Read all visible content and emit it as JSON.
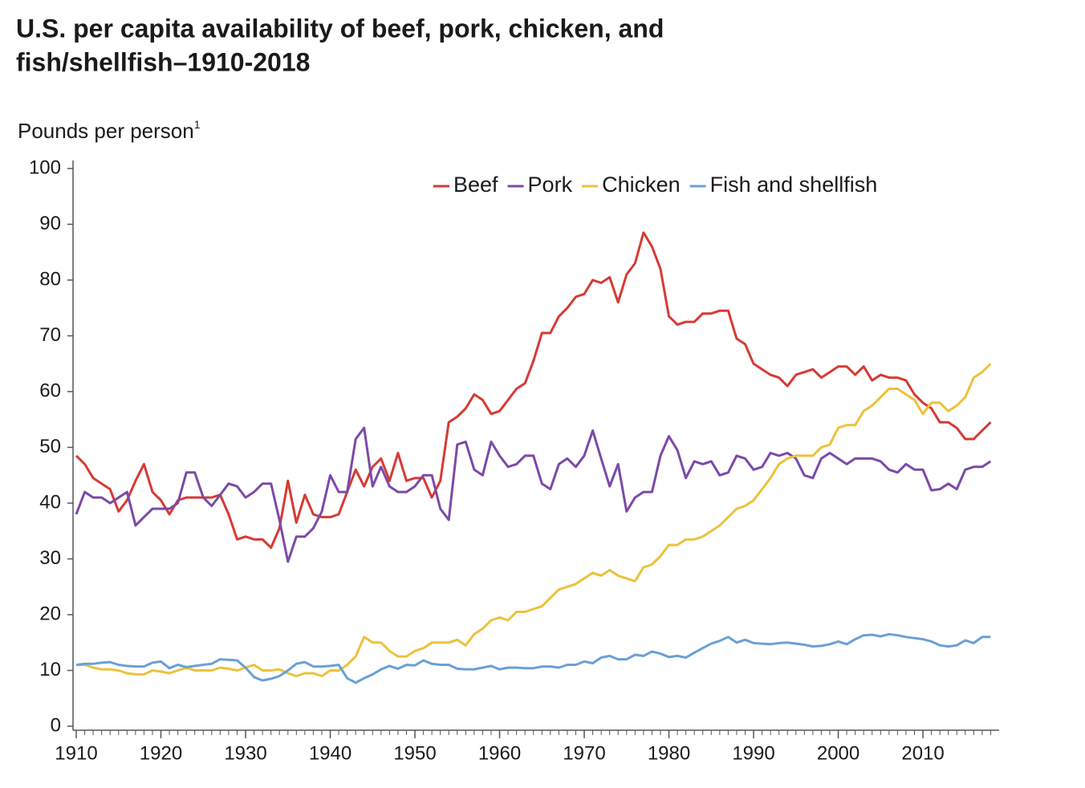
{
  "chart_data": {
    "type": "line",
    "title_lines": [
      "U.S. per capita availability of beef, pork, chicken, and",
      "fish/shellfish–1910-2018"
    ],
    "y_label": "Pounds per person",
    "y_label_note": "1",
    "x": [
      1910,
      1911,
      1912,
      1913,
      1914,
      1915,
      1916,
      1917,
      1918,
      1919,
      1920,
      1921,
      1922,
      1923,
      1924,
      1925,
      1926,
      1927,
      1928,
      1929,
      1930,
      1931,
      1932,
      1933,
      1934,
      1935,
      1936,
      1937,
      1938,
      1939,
      1940,
      1941,
      1942,
      1943,
      1944,
      1945,
      1946,
      1947,
      1948,
      1949,
      1950,
      1951,
      1952,
      1953,
      1954,
      1955,
      1956,
      1957,
      1958,
      1959,
      1960,
      1961,
      1962,
      1963,
      1964,
      1965,
      1966,
      1967,
      1968,
      1969,
      1970,
      1971,
      1972,
      1973,
      1974,
      1975,
      1976,
      1977,
      1978,
      1979,
      1980,
      1981,
      1982,
      1983,
      1984,
      1985,
      1986,
      1987,
      1988,
      1989,
      1990,
      1991,
      1992,
      1993,
      1994,
      1995,
      1996,
      1997,
      1998,
      1999,
      2000,
      2001,
      2002,
      2003,
      2004,
      2005,
      2006,
      2007,
      2008,
      2009,
      2010,
      2011,
      2012,
      2013,
      2014,
      2015,
      2016,
      2017,
      2018
    ],
    "series": [
      {
        "name": "Beef",
        "color": "#d63a34",
        "values": [
          48.5,
          47,
          44.5,
          43.5,
          42.5,
          38.5,
          40.5,
          44,
          47,
          42,
          40.5,
          38,
          40.5,
          41,
          41,
          41,
          41,
          41.5,
          38,
          33.5,
          34,
          33.5,
          33.5,
          32,
          35.5,
          44,
          36.5,
          41.5,
          38,
          37.5,
          37.5,
          38,
          42,
          46,
          43,
          46.5,
          48,
          44,
          49,
          44,
          44.5,
          44.5,
          41,
          44,
          54.5,
          55.5,
          57,
          59.5,
          58.5,
          56,
          56.5,
          58.5,
          60.5,
          61.5,
          65.5,
          70.5,
          70.5,
          73.5,
          75,
          77,
          77.5,
          80,
          79.5,
          80.5,
          76,
          81,
          83,
          88.5,
          86,
          82,
          73.5,
          72,
          72.5,
          72.5,
          74,
          74,
          74.5,
          74.5,
          69.5,
          68.5,
          65,
          64,
          63,
          62.5,
          61,
          63,
          63.5,
          64,
          62.5,
          63.5,
          64.5,
          64.5,
          63,
          64.5,
          62,
          63,
          62.5,
          62.5,
          62,
          59.5,
          58,
          57,
          54.5,
          54.5,
          53.5,
          51.5,
          51.5,
          53,
          54.5
        ]
      },
      {
        "name": "Pork",
        "color": "#7b4aa8",
        "values": [
          38,
          42,
          41,
          41,
          40,
          41,
          42,
          36,
          37.5,
          39,
          39,
          39,
          40,
          45.5,
          45.5,
          41,
          39.5,
          41.5,
          43.5,
          43,
          41,
          42,
          43.5,
          43.5,
          37,
          29.5,
          34,
          34,
          35.5,
          38.5,
          45,
          42,
          42,
          51.5,
          53.5,
          43,
          46.5,
          43,
          42,
          42,
          43,
          45,
          45,
          39,
          37,
          50.5,
          51,
          46,
          45,
          51,
          48.5,
          46.5,
          47,
          48.5,
          48.5,
          43.5,
          42.5,
          47,
          48,
          46.5,
          48.5,
          53,
          48,
          43,
          47,
          38.5,
          41,
          42,
          42,
          48.5,
          52,
          49.5,
          44.5,
          47.5,
          47,
          47.5,
          45,
          45.5,
          48.5,
          48,
          46,
          46.5,
          49,
          48.5,
          49,
          48,
          45,
          44.5,
          48,
          49,
          48,
          47,
          48,
          48,
          48,
          47.5,
          46,
          45.5,
          47,
          46,
          46,
          42.3,
          42.5,
          43.5,
          42.5,
          46,
          46.5,
          46.5,
          47.5
        ]
      },
      {
        "name": "Chicken",
        "color": "#ecc23c",
        "values": [
          11,
          11,
          10.5,
          10.2,
          10.2,
          10,
          9.5,
          9.3,
          9.3,
          10,
          9.8,
          9.5,
          10,
          10.5,
          10,
          10,
          10,
          10.5,
          10.3,
          10,
          10.5,
          11,
          10,
          10,
          10.2,
          9.5,
          9,
          9.5,
          9.5,
          9,
          10,
          10,
          11,
          12.5,
          16,
          15,
          15,
          13.5,
          12.5,
          12.5,
          13.5,
          14,
          15,
          15,
          15,
          15.5,
          14.5,
          16.5,
          17.5,
          19,
          19.5,
          19,
          20.5,
          20.5,
          21,
          21.5,
          23,
          24.5,
          25,
          25.5,
          26.5,
          27.5,
          27,
          28,
          27,
          26.5,
          26,
          28.5,
          29,
          30.5,
          32.5,
          32.5,
          33.5,
          33.5,
          34,
          35,
          36,
          37.5,
          39,
          39.5,
          40.5,
          42.5,
          44.5,
          47,
          48,
          48.5,
          48.5,
          48.5,
          50,
          50.5,
          53.5,
          54,
          54,
          56.5,
          57.5,
          59,
          60.5,
          60.5,
          59.5,
          58.5,
          56,
          58,
          58,
          56.5,
          57.5,
          59,
          62.5,
          63.5,
          65
        ]
      },
      {
        "name": "Fish and shellfish",
        "color": "#6aa0d6",
        "values": [
          11,
          11.2,
          11.2,
          11.4,
          11.5,
          11,
          10.8,
          10.7,
          10.7,
          11.4,
          11.6,
          10.4,
          11,
          10.6,
          10.8,
          11,
          11.2,
          12,
          11.9,
          11.8,
          10.5,
          8.8,
          8.2,
          8.5,
          9,
          10,
          11.2,
          11.5,
          10.7,
          10.7,
          10.8,
          11,
          8.6,
          7.8,
          8.6,
          9.3,
          10.2,
          10.8,
          10.3,
          11,
          10.9,
          11.8,
          11.2,
          11,
          11,
          10.3,
          10.2,
          10.2,
          10.5,
          10.8,
          10.2,
          10.5,
          10.5,
          10.4,
          10.4,
          10.7,
          10.7,
          10.5,
          11,
          11,
          11.6,
          11.3,
          12.3,
          12.6,
          12,
          12,
          12.8,
          12.6,
          13.4,
          13,
          12.4,
          12.6,
          12.3,
          13.2,
          14,
          14.8,
          15.3,
          16,
          15,
          15.5,
          14.9,
          14.8,
          14.7,
          14.9,
          15,
          14.8,
          14.6,
          14.3,
          14.4,
          14.7,
          15.2,
          14.7,
          15.6,
          16.3,
          16.4,
          16.1,
          16.5,
          16.3,
          16,
          15.8,
          15.6,
          15.2,
          14.5,
          14.3,
          14.5,
          15.4,
          14.9,
          16,
          16
        ]
      }
    ],
    "xlim": [
      1910,
      2019
    ],
    "xticks": [
      1910,
      1920,
      1930,
      1940,
      1950,
      1960,
      1970,
      1980,
      1990,
      2000,
      2010
    ],
    "ylim": [
      0,
      100
    ],
    "yticks": [
      0,
      10,
      20,
      30,
      40,
      50,
      60,
      70,
      80,
      90,
      100
    ],
    "grid": false,
    "legend": "top"
  }
}
